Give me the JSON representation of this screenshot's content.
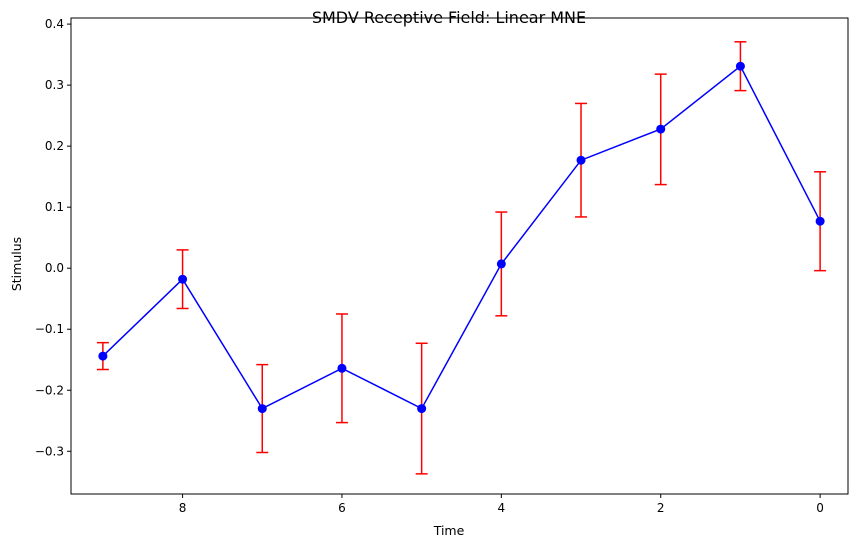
{
  "chart_data": {
    "type": "line",
    "title": "SMDV Receptive Field: Linear MNE",
    "xlabel": "Time",
    "ylabel": "Stimulus",
    "x_inverted": true,
    "xlim": [
      9.4,
      -0.35
    ],
    "ylim": [
      -0.37,
      0.41
    ],
    "xticks": [
      8,
      6,
      4,
      2,
      0
    ],
    "yticks": [
      -0.3,
      -0.2,
      -0.1,
      0.0,
      0.1,
      0.2,
      0.3,
      0.4
    ],
    "xtick_labels": [
      "8",
      "6",
      "4",
      "2",
      "0"
    ],
    "ytick_labels": [
      "−0.3",
      "−0.2",
      "−0.1",
      "0.0",
      "0.1",
      "0.2",
      "0.3",
      "0.4"
    ],
    "grid": false,
    "series": [
      {
        "x": [
          9,
          8,
          7,
          6,
          5,
          4,
          3,
          2,
          1,
          0
        ],
        "values": [
          -0.144,
          -0.018,
          -0.23,
          -0.164,
          -0.23,
          0.007,
          0.177,
          0.228,
          0.331,
          0.077
        ],
        "err_low": [
          -0.166,
          -0.066,
          -0.302,
          -0.253,
          -0.337,
          -0.078,
          0.084,
          0.137,
          0.291,
          -0.004
        ],
        "err_high": [
          -0.122,
          0.03,
          -0.158,
          -0.075,
          -0.123,
          0.092,
          0.27,
          0.318,
          0.371,
          0.158
        ],
        "line_color": "#0000ff",
        "marker_color": "#0000ff",
        "error_color": "#ff0000"
      }
    ]
  }
}
